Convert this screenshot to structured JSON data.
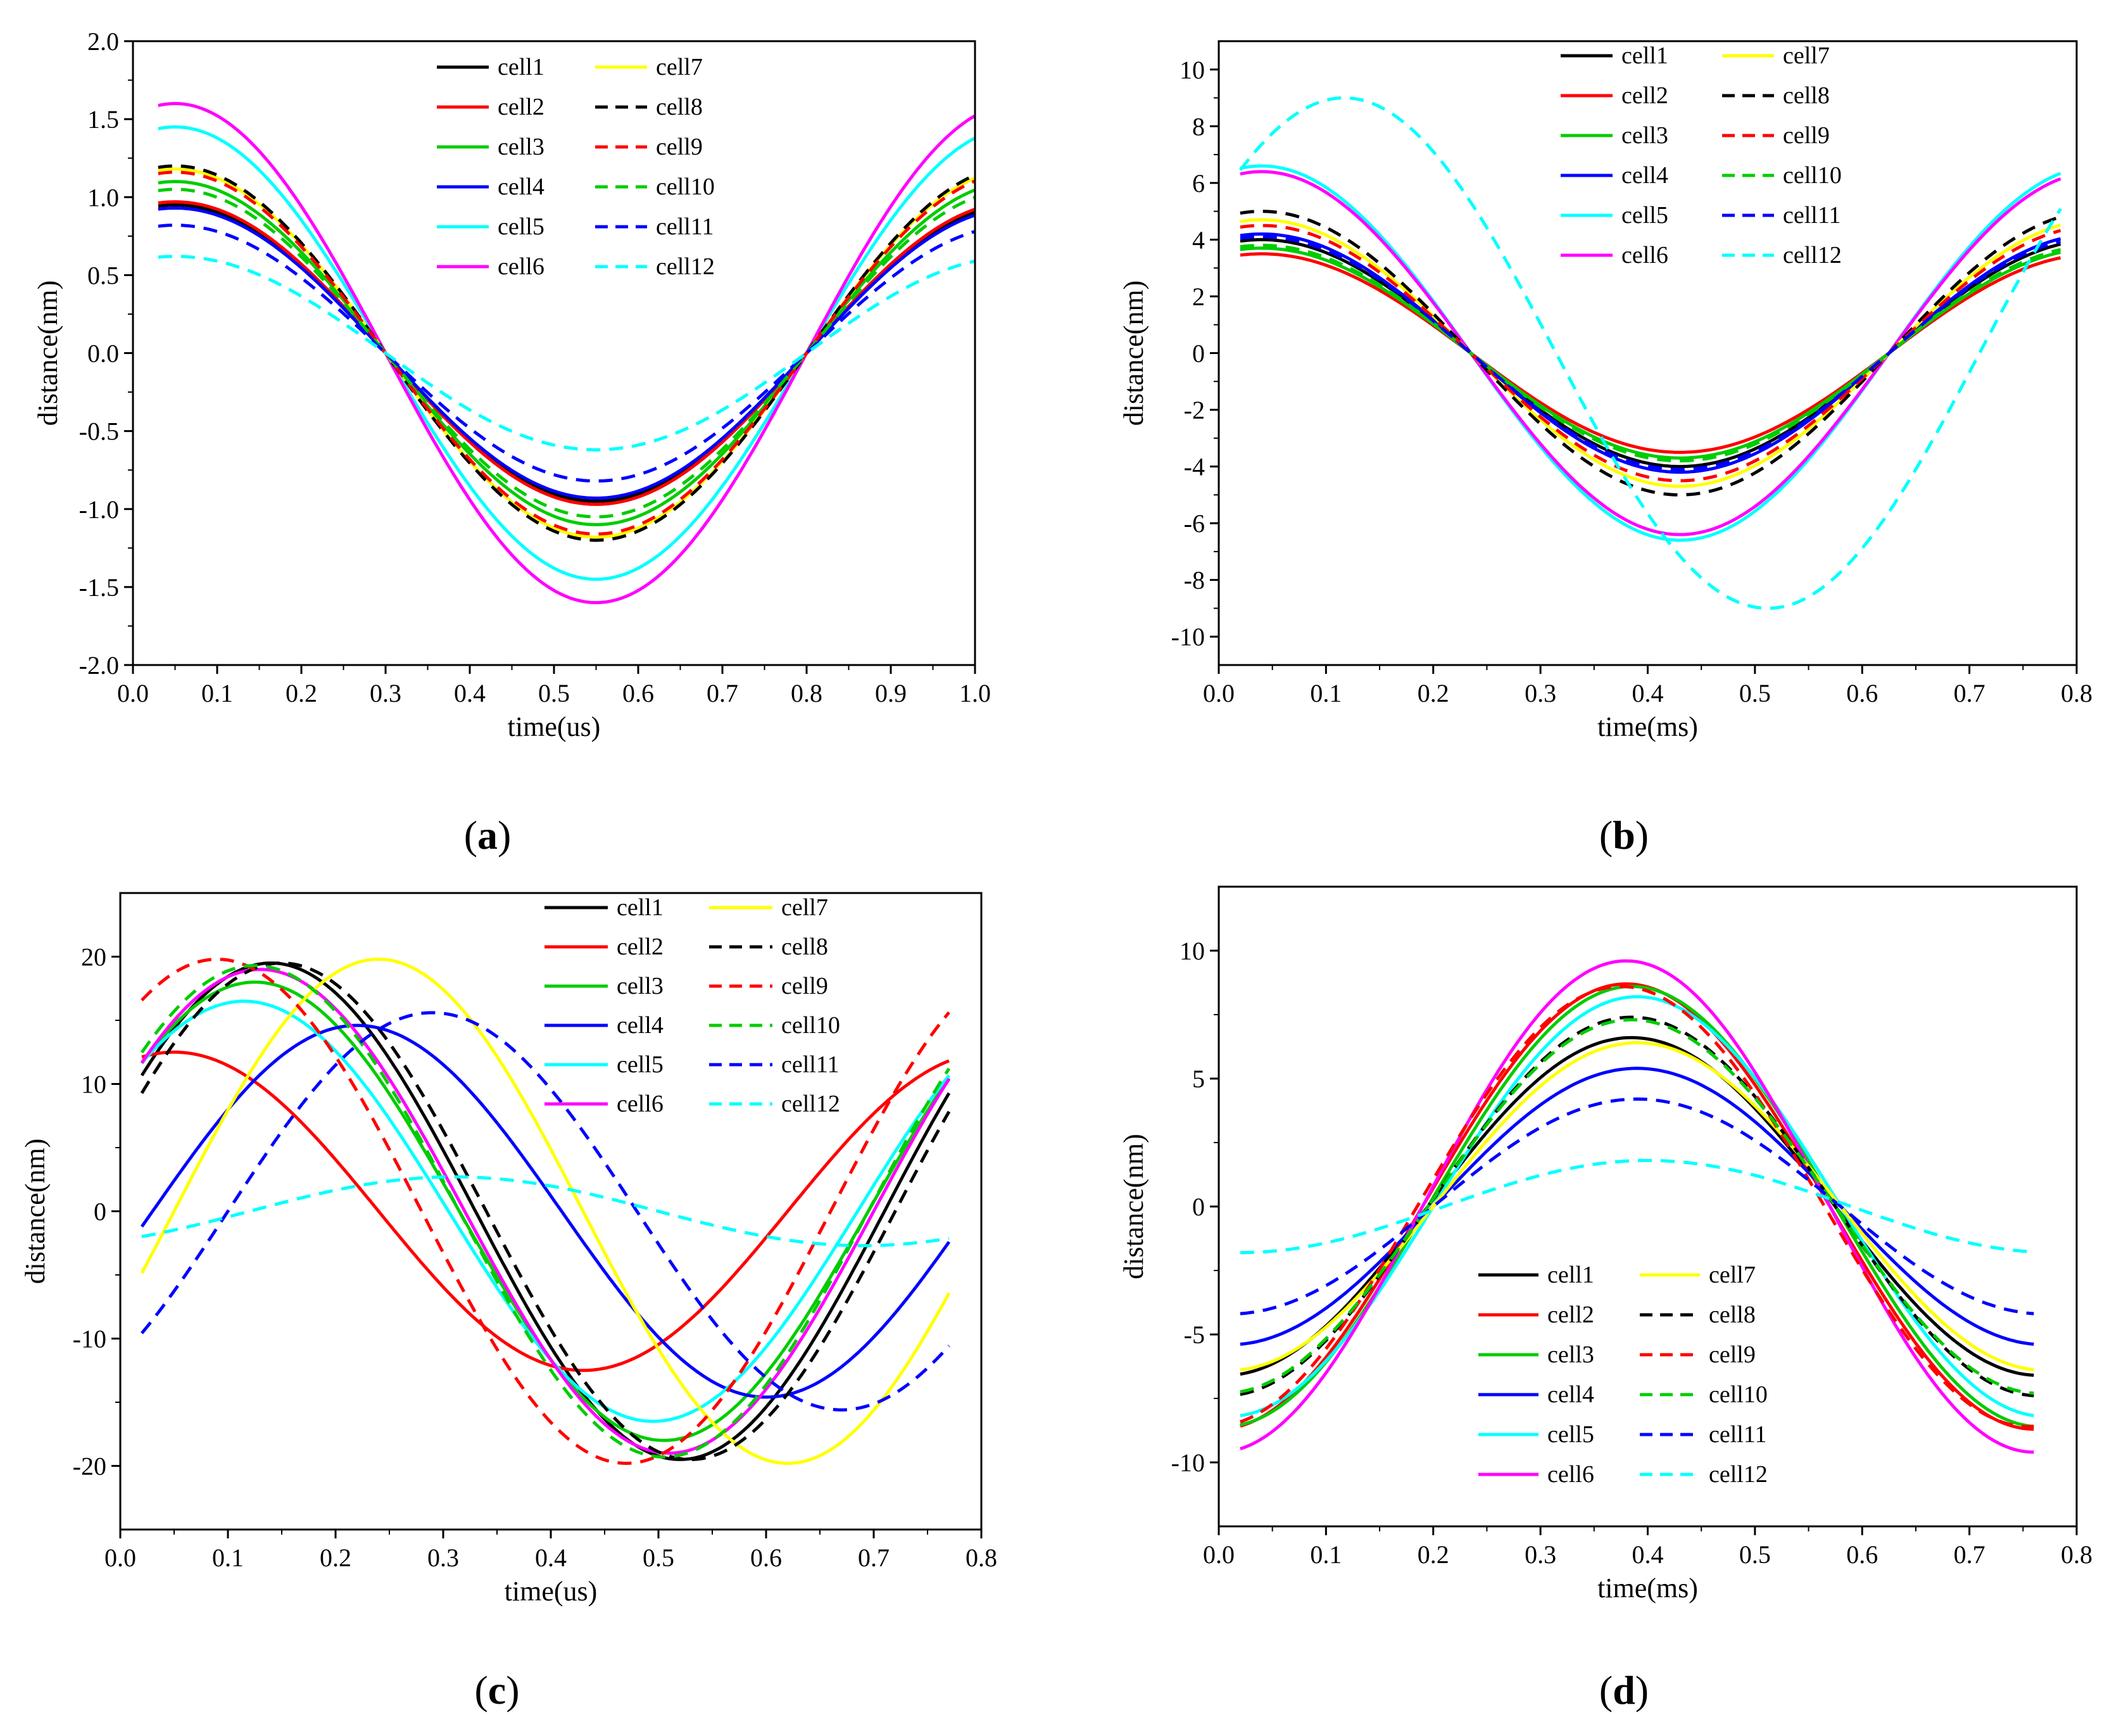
{
  "figure": {
    "legend_entries": [
      {
        "name": "cell1",
        "color": "#000000",
        "dashed": false
      },
      {
        "name": "cell2",
        "color": "#ff0000",
        "dashed": false
      },
      {
        "name": "cell3",
        "color": "#00cc00",
        "dashed": false
      },
      {
        "name": "cell4",
        "color": "#0000ff",
        "dashed": false
      },
      {
        "name": "cell5",
        "color": "#00ffff",
        "dashed": false
      },
      {
        "name": "cell6",
        "color": "#ff00ff",
        "dashed": false
      },
      {
        "name": "cell7",
        "color": "#ffff00",
        "dashed": false
      },
      {
        "name": "cell8",
        "color": "#000000",
        "dashed": true
      },
      {
        "name": "cell9",
        "color": "#ff0000",
        "dashed": true
      },
      {
        "name": "cell10",
        "color": "#00cc00",
        "dashed": true
      },
      {
        "name": "cell11",
        "color": "#0000ff",
        "dashed": true
      },
      {
        "name": "cell12",
        "color": "#00ffff",
        "dashed": true
      }
    ]
  },
  "chart_data": [
    {
      "id": "a",
      "type": "line",
      "panel_label": "a",
      "xlabel": "time(us)",
      "ylabel": "distance(nm)",
      "xlim": [
        0.0,
        1.0
      ],
      "ylim": [
        -2.0,
        2.0
      ],
      "xticks": [
        "0.0",
        "0.1",
        "0.2",
        "0.3",
        "0.4",
        "0.5",
        "0.6",
        "0.7",
        "0.8",
        "0.9",
        "1.0"
      ],
      "yticks": [
        "-2.0",
        "-1.5",
        "-1.0",
        "-0.5",
        "0.0",
        "0.5",
        "1.0",
        "1.5",
        "2.0"
      ],
      "legend_position": "top-center",
      "x_range": [
        0.03,
        1.0
      ],
      "series": [
        {
          "name": "cell1",
          "model": "cosine",
          "amplitude": 0.95,
          "period": 1.0,
          "phase": 0.05,
          "offset": 0
        },
        {
          "name": "cell2",
          "model": "cosine",
          "amplitude": 0.97,
          "period": 1.0,
          "phase": 0.05,
          "offset": 0
        },
        {
          "name": "cell3",
          "model": "cosine",
          "amplitude": 1.1,
          "period": 1.0,
          "phase": 0.05,
          "offset": 0
        },
        {
          "name": "cell4",
          "model": "cosine",
          "amplitude": 0.93,
          "period": 1.0,
          "phase": 0.05,
          "offset": 0
        },
        {
          "name": "cell5",
          "model": "cosine",
          "amplitude": 1.45,
          "period": 1.0,
          "phase": 0.05,
          "offset": 0
        },
        {
          "name": "cell6",
          "model": "cosine",
          "amplitude": 1.6,
          "period": 1.0,
          "phase": 0.05,
          "offset": 0
        },
        {
          "name": "cell7",
          "model": "cosine",
          "amplitude": 1.18,
          "period": 1.0,
          "phase": 0.05,
          "offset": 0
        },
        {
          "name": "cell8",
          "model": "cosine",
          "amplitude": 1.2,
          "period": 1.0,
          "phase": 0.05,
          "offset": 0
        },
        {
          "name": "cell9",
          "model": "cosine",
          "amplitude": 1.16,
          "period": 1.0,
          "phase": 0.05,
          "offset": 0
        },
        {
          "name": "cell10",
          "model": "cosine",
          "amplitude": 1.05,
          "period": 1.0,
          "phase": 0.05,
          "offset": 0
        },
        {
          "name": "cell11",
          "model": "cosine",
          "amplitude": 0.82,
          "period": 1.0,
          "phase": 0.05,
          "offset": 0
        },
        {
          "name": "cell12",
          "model": "cosine",
          "amplitude": 0.62,
          "period": 1.0,
          "phase": 0.05,
          "offset": 0
        }
      ]
    },
    {
      "id": "b",
      "type": "line",
      "panel_label": "b",
      "xlabel": "time(ms)",
      "ylabel": "distance(nm)",
      "xlim": [
        0.0,
        0.8
      ],
      "ylim": [
        -11,
        11
      ],
      "xticks": [
        "0.0",
        "0.1",
        "0.2",
        "0.3",
        "0.4",
        "0.5",
        "0.6",
        "0.7",
        "0.8"
      ],
      "yticks": [
        "-10",
        "-8",
        "-6",
        "-4",
        "-2",
        "0",
        "2",
        "4",
        "6",
        "8",
        "10"
      ],
      "legend_position": "top-center",
      "x_range": [
        0.02,
        0.785
      ],
      "series": [
        {
          "name": "cell1",
          "model": "cosine",
          "amplitude": 4.0,
          "period": 0.78,
          "phase": 0.04,
          "offset": 0
        },
        {
          "name": "cell2",
          "model": "cosine",
          "amplitude": 3.5,
          "period": 0.78,
          "phase": 0.04,
          "offset": 0
        },
        {
          "name": "cell3",
          "model": "cosine",
          "amplitude": 3.7,
          "period": 0.78,
          "phase": 0.04,
          "offset": 0
        },
        {
          "name": "cell4",
          "model": "cosine",
          "amplitude": 4.2,
          "period": 0.78,
          "phase": 0.04,
          "offset": 0
        },
        {
          "name": "cell5",
          "model": "cosine",
          "amplitude": 6.6,
          "period": 0.78,
          "phase": 0.04,
          "offset": 0
        },
        {
          "name": "cell6",
          "model": "cosine",
          "amplitude": 6.4,
          "period": 0.78,
          "phase": 0.04,
          "offset": 0
        },
        {
          "name": "cell7",
          "model": "cosine",
          "amplitude": 4.7,
          "period": 0.78,
          "phase": 0.04,
          "offset": 0
        },
        {
          "name": "cell8",
          "model": "cosine",
          "amplitude": 5.0,
          "period": 0.78,
          "phase": 0.04,
          "offset": 0
        },
        {
          "name": "cell9",
          "model": "cosine",
          "amplitude": 4.5,
          "period": 0.78,
          "phase": 0.04,
          "offset": 0
        },
        {
          "name": "cell10",
          "model": "cosine",
          "amplitude": 3.8,
          "period": 0.78,
          "phase": 0.04,
          "offset": 0
        },
        {
          "name": "cell11",
          "model": "cosine",
          "amplitude": 4.1,
          "period": 0.78,
          "phase": 0.04,
          "offset": 0
        },
        {
          "name": "cell12",
          "model": "cosine",
          "amplitude": 9.0,
          "period": 0.79,
          "phase": 0.117,
          "offset": 0
        }
      ]
    },
    {
      "id": "c",
      "type": "line",
      "panel_label": "c",
      "xlabel": "time(us)",
      "ylabel": "distance(nm)",
      "xlim": [
        0.0,
        0.8
      ],
      "ylim": [
        -25,
        25
      ],
      "xticks": [
        "0.0",
        "0.1",
        "0.2",
        "0.3",
        "0.4",
        "0.5",
        "0.6",
        "0.7",
        "0.8"
      ],
      "yticks": [
        "-20",
        "-10",
        "0",
        "10",
        "20"
      ],
      "legend_position": "top-right",
      "x_range": [
        0.02,
        0.77
      ],
      "series": [
        {
          "name": "cell1",
          "model": "cosine",
          "amplitude": 19.5,
          "period": 0.76,
          "phase": 0.14,
          "offset": 0
        },
        {
          "name": "cell2",
          "model": "cosine",
          "amplitude": 12.5,
          "period": 0.76,
          "phase": 0.05,
          "offset": 0
        },
        {
          "name": "cell3",
          "model": "cosine",
          "amplitude": 18.0,
          "period": 0.76,
          "phase": 0.125,
          "offset": 0
        },
        {
          "name": "cell4",
          "model": "cosine",
          "amplitude": 14.6,
          "period": 0.76,
          "phase": 0.22,
          "offset": 0
        },
        {
          "name": "cell5",
          "model": "cosine",
          "amplitude": 16.5,
          "period": 0.76,
          "phase": 0.115,
          "offset": 0
        },
        {
          "name": "cell6",
          "model": "cosine",
          "amplitude": 19.0,
          "period": 0.76,
          "phase": 0.13,
          "offset": 0
        },
        {
          "name": "cell7",
          "model": "cosine",
          "amplitude": 19.8,
          "period": 0.76,
          "phase": 0.24,
          "offset": 0
        },
        {
          "name": "cell8",
          "model": "cosine",
          "amplitude": 19.5,
          "period": 0.76,
          "phase": 0.15,
          "offset": 0
        },
        {
          "name": "cell9",
          "model": "cosine",
          "amplitude": 19.8,
          "period": 0.76,
          "phase": 0.09,
          "offset": 0
        },
        {
          "name": "cell10",
          "model": "cosine",
          "amplitude": 19.3,
          "period": 0.76,
          "phase": 0.125,
          "offset": 0
        },
        {
          "name": "cell11",
          "model": "cosine",
          "amplitude": 15.6,
          "period": 0.76,
          "phase": 0.29,
          "offset": 0
        },
        {
          "name": "cell12",
          "model": "cosine",
          "amplitude": 2.7,
          "period": 0.76,
          "phase": 0.31,
          "offset": 0
        }
      ]
    },
    {
      "id": "d",
      "type": "line",
      "panel_label": "d",
      "xlabel": "time(ms)",
      "ylabel": "distance(nm)",
      "xlim": [
        0.0,
        0.8
      ],
      "ylim": [
        -12.5,
        12.5
      ],
      "xticks": [
        "0.0",
        "0.1",
        "0.2",
        "0.3",
        "0.4",
        "0.5",
        "0.6",
        "0.7",
        "0.8"
      ],
      "yticks": [
        "-10",
        "-5",
        "0",
        "5",
        "10"
      ],
      "legend_position": "bottom-center",
      "x_range": [
        0.02,
        0.76
      ],
      "series": [
        {
          "name": "cell1",
          "model": "cosine",
          "amplitude": 6.6,
          "period": 0.76,
          "phase": 0.385,
          "offset": 0
        },
        {
          "name": "cell2",
          "model": "cosine",
          "amplitude": 8.7,
          "period": 0.76,
          "phase": 0.38,
          "offset": 0
        },
        {
          "name": "cell3",
          "model": "cosine",
          "amplitude": 8.6,
          "period": 0.76,
          "phase": 0.385,
          "offset": 0
        },
        {
          "name": "cell4",
          "model": "cosine",
          "amplitude": 5.4,
          "period": 0.76,
          "phase": 0.39,
          "offset": 0
        },
        {
          "name": "cell5",
          "model": "cosine",
          "amplitude": 8.2,
          "period": 0.76,
          "phase": 0.39,
          "offset": 0
        },
        {
          "name": "cell6",
          "model": "cosine",
          "amplitude": 9.6,
          "period": 0.76,
          "phase": 0.38,
          "offset": 0
        },
        {
          "name": "cell7",
          "model": "cosine",
          "amplitude": 6.4,
          "period": 0.76,
          "phase": 0.39,
          "offset": 0
        },
        {
          "name": "cell8",
          "model": "cosine",
          "amplitude": 7.4,
          "period": 0.76,
          "phase": 0.385,
          "offset": 0
        },
        {
          "name": "cell9",
          "model": "cosine",
          "amplitude": 8.6,
          "period": 0.76,
          "phase": 0.375,
          "offset": 0
        },
        {
          "name": "cell10",
          "model": "cosine",
          "amplitude": 7.3,
          "period": 0.76,
          "phase": 0.385,
          "offset": 0
        },
        {
          "name": "cell11",
          "model": "cosine",
          "amplitude": 4.2,
          "period": 0.76,
          "phase": 0.39,
          "offset": 0
        },
        {
          "name": "cell12",
          "model": "cosine",
          "amplitude": 1.8,
          "period": 0.76,
          "phase": 0.4,
          "offset": 0
        }
      ]
    }
  ]
}
